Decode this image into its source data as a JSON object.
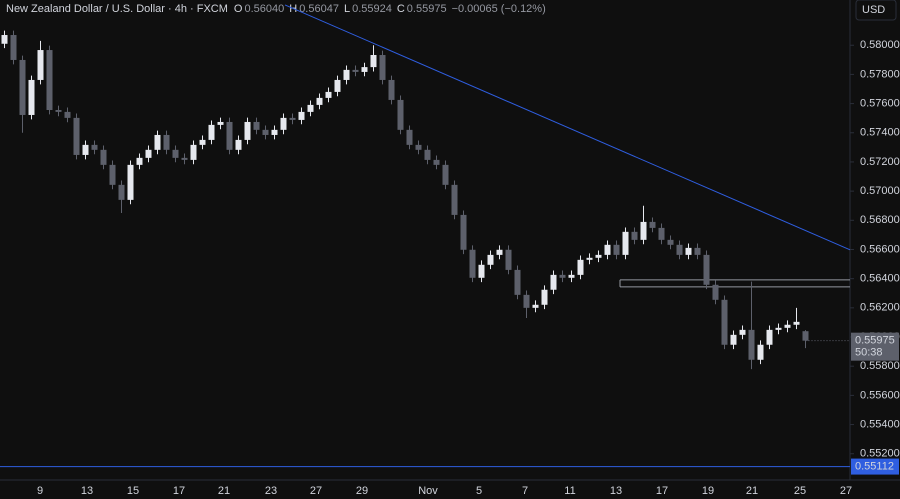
{
  "chart_data": {
    "type": "candlestick",
    "title": "New Zealand Dollar / U.S. Dollar · 4h · FXCM",
    "header": {
      "o_key": "O",
      "o_val": "0.56040",
      "h_key": "H",
      "h_val": "0.56047",
      "l_key": "L",
      "l_val": "0.55924",
      "c_key": "C",
      "c_val": "0.55975",
      "change": "−0.00065 (−0.12%)"
    },
    "currency": "USD",
    "countdown": "50:38",
    "x_labels": [
      "9",
      "13",
      "15",
      "17",
      "21",
      "23",
      "27",
      "29",
      "Nov",
      "5",
      "7",
      "11",
      "13",
      "17",
      "19",
      "21",
      "25",
      "27"
    ],
    "open": [
      0.5801,
      0.5807,
      0.57899,
      0.57522,
      0.57762,
      0.57967,
      0.57556,
      0.57543,
      0.57502,
      0.57248,
      0.57317,
      0.57283,
      0.5718,
      0.57043,
      0.5694,
      0.5718,
      0.57228,
      0.57283,
      0.57385,
      0.57283,
      0.57228,
      0.57214,
      0.57317,
      0.57351,
      0.57454,
      0.57474,
      0.57283,
      0.57351,
      0.57474,
      0.5742,
      0.57385,
      0.5742,
      0.57502,
      0.57488,
      0.57543,
      0.57591,
      0.57639,
      0.5768,
      0.57762,
      0.57831,
      0.57817,
      0.5785,
      0.57933,
      0.57762,
      0.57625,
      0.5742,
      0.57317,
      0.57283,
      0.57214,
      0.5718,
      0.57043,
      0.56837,
      0.56598,
      0.56406,
      0.56495,
      0.56563,
      0.56598,
      0.5646,
      0.56289,
      0.562,
      0.56221,
      0.56324,
      0.56426,
      0.56406,
      0.56426,
      0.56529,
      0.56543,
      0.56563,
      0.56632,
      0.56563,
      0.56721,
      0.56666,
      0.56789,
      0.56748,
      0.56666,
      0.56632,
      0.56563,
      0.56611,
      0.56563,
      0.56358,
      0.56255,
      0.55947,
      0.56015,
      0.56049,
      0.55844,
      0.55947,
      0.56049,
      0.56063,
      0.56084,
      0.5604
    ],
    "high": [
      0.581,
      0.581,
      0.57929,
      0.57792,
      0.5803,
      0.57997,
      0.57586,
      0.57573,
      0.57532,
      0.57347,
      0.57347,
      0.57313,
      0.5721,
      0.57073,
      0.5721,
      0.57258,
      0.57313,
      0.57415,
      0.57415,
      0.57313,
      0.57258,
      0.57347,
      0.57381,
      0.57484,
      0.57504,
      0.57504,
      0.57381,
      0.57504,
      0.57504,
      0.5745,
      0.5745,
      0.57532,
      0.57532,
      0.57573,
      0.57621,
      0.57669,
      0.5771,
      0.57792,
      0.57861,
      0.57861,
      0.5788,
      0.58,
      0.57963,
      0.57792,
      0.57655,
      0.5745,
      0.57347,
      0.57313,
      0.57244,
      0.5721,
      0.57073,
      0.56867,
      0.56628,
      0.56525,
      0.56593,
      0.56628,
      0.56628,
      0.5649,
      0.56319,
      0.56251,
      0.56354,
      0.56456,
      0.56456,
      0.56456,
      0.56559,
      0.56573,
      0.56593,
      0.56662,
      0.56662,
      0.56751,
      0.56751,
      0.569,
      0.56819,
      0.56778,
      0.56696,
      0.56662,
      0.56641,
      0.56641,
      0.56593,
      0.56388,
      0.56285,
      0.56045,
      0.56079,
      0.5638,
      0.55977,
      0.56079,
      0.56093,
      0.56114,
      0.562,
      0.56047
    ],
    "low": [
      0.5798,
      0.57869,
      0.574,
      0.57492,
      0.57732,
      0.57526,
      0.57513,
      0.57472,
      0.57218,
      0.57218,
      0.57253,
      0.5715,
      0.57013,
      0.5685,
      0.5691,
      0.5715,
      0.57198,
      0.57253,
      0.57253,
      0.57198,
      0.57184,
      0.57184,
      0.57287,
      0.57321,
      0.57424,
      0.57253,
      0.57253,
      0.57321,
      0.5739,
      0.57355,
      0.57355,
      0.5739,
      0.57458,
      0.57458,
      0.57513,
      0.57561,
      0.57609,
      0.5765,
      0.57732,
      0.57787,
      0.57787,
      0.5782,
      0.57732,
      0.57595,
      0.5739,
      0.57287,
      0.57253,
      0.57184,
      0.5715,
      0.57013,
      0.56807,
      0.56568,
      0.56376,
      0.56376,
      0.56465,
      0.56533,
      0.5643,
      0.56259,
      0.5613,
      0.5617,
      0.56191,
      0.56294,
      0.56376,
      0.56376,
      0.56396,
      0.56499,
      0.56513,
      0.56533,
      0.56533,
      0.56533,
      0.56636,
      0.56636,
      0.56718,
      0.56636,
      0.56602,
      0.56533,
      0.56533,
      0.56533,
      0.56328,
      0.56225,
      0.55917,
      0.55917,
      0.55985,
      0.5578,
      0.55814,
      0.55917,
      0.56019,
      0.56033,
      0.56054,
      0.55924
    ],
    "close": [
      0.5807,
      0.57899,
      0.57522,
      0.57762,
      0.57967,
      0.57556,
      0.57543,
      0.57502,
      0.57248,
      0.57317,
      0.57283,
      0.5718,
      0.57043,
      0.5694,
      0.5718,
      0.57228,
      0.57283,
      0.57385,
      0.57283,
      0.57228,
      0.57214,
      0.57317,
      0.57351,
      0.57454,
      0.57474,
      0.57283,
      0.57351,
      0.57474,
      0.5742,
      0.57385,
      0.5742,
      0.57502,
      0.57488,
      0.57543,
      0.57591,
      0.57639,
      0.5768,
      0.57762,
      0.57831,
      0.57817,
      0.5785,
      0.57933,
      0.57762,
      0.57625,
      0.5742,
      0.57317,
      0.57283,
      0.57214,
      0.5718,
      0.57043,
      0.56837,
      0.56598,
      0.56406,
      0.56495,
      0.56563,
      0.56598,
      0.5646,
      0.56289,
      0.562,
      0.56221,
      0.56324,
      0.56426,
      0.56406,
      0.56426,
      0.56529,
      0.56543,
      0.56563,
      0.56632,
      0.56563,
      0.56721,
      0.56666,
      0.56789,
      0.56748,
      0.56666,
      0.56632,
      0.56563,
      0.56611,
      0.56563,
      0.56358,
      0.56255,
      0.55947,
      0.56015,
      0.56049,
      0.55844,
      0.55947,
      0.56049,
      0.56063,
      0.56084,
      0.56104,
      0.55975
    ],
    "up_color": "#e6e8ee",
    "down_color": "#5d606b",
    "ylim": [
      0.5502,
      0.5831
    ],
    "yticks": [
      {
        "value": 0.552,
        "label": "0.55200"
      },
      {
        "value": 0.554,
        "label": "0.55400"
      },
      {
        "value": 0.556,
        "label": "0.55600"
      },
      {
        "value": 0.558,
        "label": "0.55800"
      },
      {
        "value": 0.56,
        "label": "0.56000"
      },
      {
        "value": 0.562,
        "label": "0.56200"
      },
      {
        "value": 0.564,
        "label": "0.56400"
      },
      {
        "value": 0.566,
        "label": "0.56600"
      },
      {
        "value": 0.568,
        "label": "0.56800"
      },
      {
        "value": 0.57,
        "label": "0.57000"
      },
      {
        "value": 0.572,
        "label": "0.57200"
      },
      {
        "value": 0.574,
        "label": "0.57400"
      },
      {
        "value": 0.576,
        "label": "0.57600"
      },
      {
        "value": 0.578,
        "label": "0.57800"
      },
      {
        "value": 0.58,
        "label": "0.58000"
      }
    ],
    "trendline": [
      0.58276,
      0.56598
    ],
    "zone": [
      0.56392,
      0.56344
    ],
    "support": 0.55112,
    "line_color": "#2f5ee0"
  }
}
